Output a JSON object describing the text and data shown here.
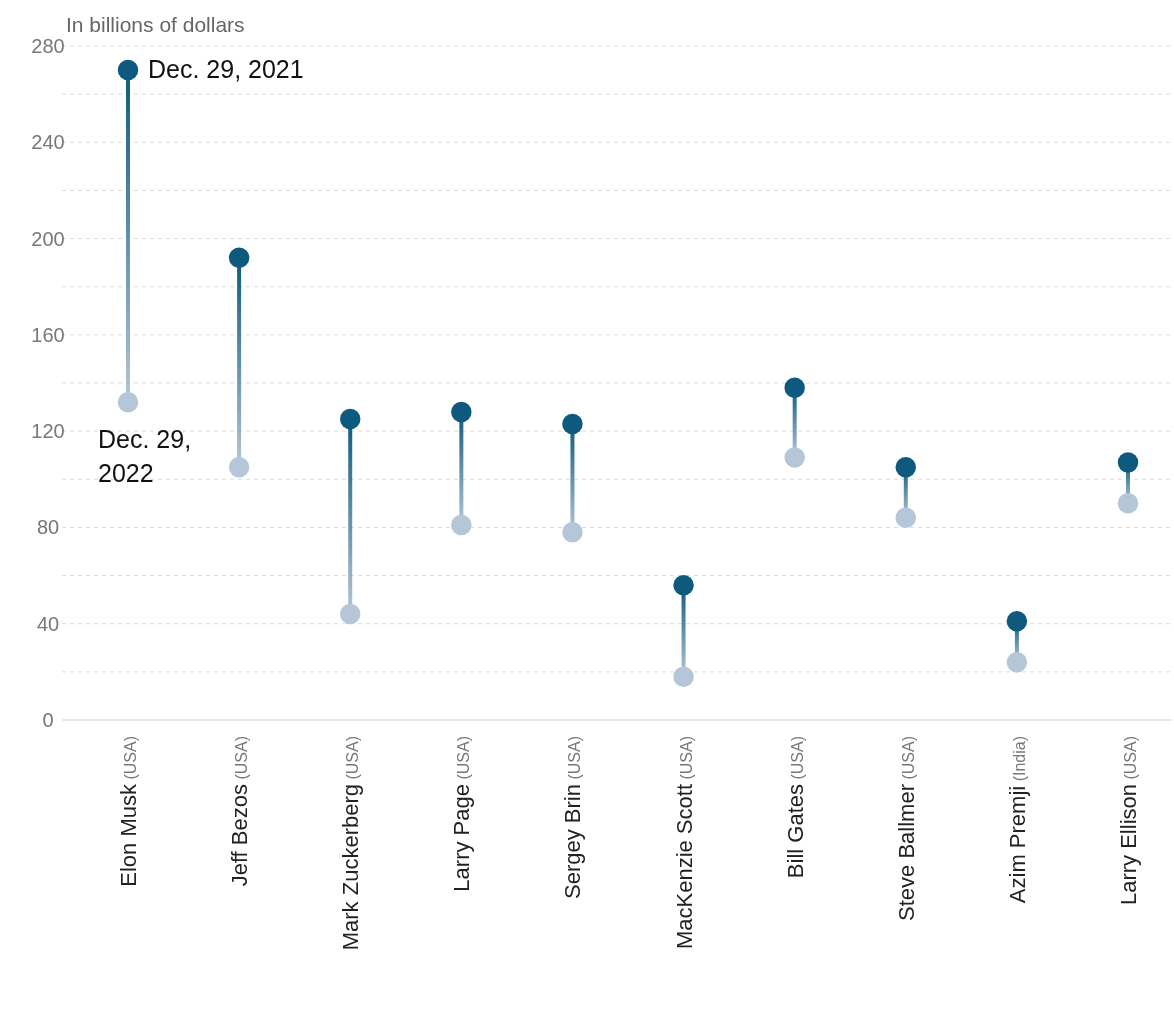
{
  "chart_data": {
    "type": "scatter",
    "ylabel": "In billions of dollars",
    "categories": [
      "Elon Musk (USA)",
      "Jeff Bezos (USA)",
      "Mark Zuckerberg (USA)",
      "Larry Page (USA)",
      "Sergey Brin (USA)",
      "MacKenzie Scott (USA)",
      "Bill Gates (USA)",
      "Steve Ballmer (USA)",
      "Azim Premji (India)",
      "Larry Ellison (USA)"
    ],
    "series": [
      {
        "name": "Dec. 29, 2021",
        "color": "#0e5a7e",
        "values": [
          270,
          192,
          125,
          128,
          123,
          56,
          138,
          105,
          41,
          107
        ]
      },
      {
        "name": "Dec. 29, 2022",
        "color": "#b4c6d8",
        "values": [
          132,
          105,
          44,
          81,
          78,
          18,
          109,
          84,
          24,
          90
        ]
      }
    ],
    "ylim": [
      0,
      280
    ],
    "yticks": [
      0,
      {
        "value": 20,
        "label": null
      },
      40,
      {
        "value": 60,
        "label": null
      },
      80,
      {
        "value": 100,
        "label": null
      },
      120,
      {
        "value": 140,
        "label": null
      },
      160,
      {
        "value": 180,
        "label": null
      },
      200,
      {
        "value": 220,
        "label": null
      },
      240,
      {
        "value": 260,
        "label": null
      },
      280
    ],
    "grid": "y",
    "marker": "circle"
  }
}
